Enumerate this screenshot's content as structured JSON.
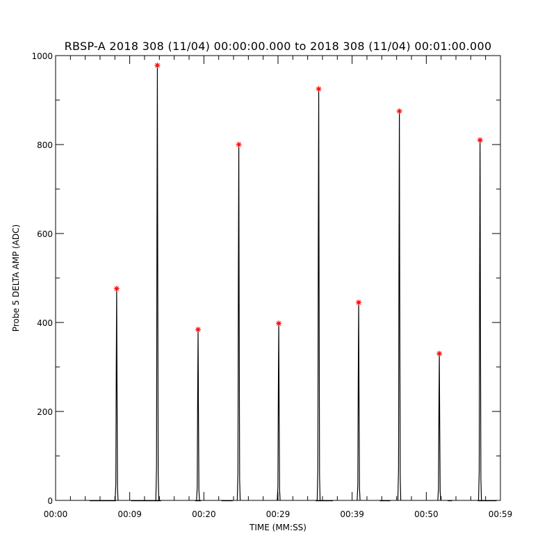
{
  "chart_data": {
    "type": "line",
    "title": "RBSP-A 2018 308 (11/04) 00:00:00.000 to 2018 308 (11/04) 00:01:00.000",
    "xlabel": "TIME (MM:SS)",
    "ylabel": "Probe 5 DELTA AMP (ADC)",
    "xlim": [
      0,
      59
    ],
    "ylim": [
      0,
      1000
    ],
    "x_ticks": [
      {
        "value": 0,
        "label": "00:00"
      },
      {
        "value": 9.83,
        "label": "00:09"
      },
      {
        "value": 19.67,
        "label": "00:20"
      },
      {
        "value": 29.5,
        "label": "00:29"
      },
      {
        "value": 39.33,
        "label": "00:39"
      },
      {
        "value": 49.17,
        "label": "00:50"
      },
      {
        "value": 59,
        "label": "00:59"
      }
    ],
    "y_ticks": [
      {
        "value": 0,
        "label": "0"
      },
      {
        "value": 200,
        "label": "200"
      },
      {
        "value": 400,
        "label": "400"
      },
      {
        "value": 600,
        "label": "600"
      },
      {
        "value": 800,
        "label": "800"
      },
      {
        "value": 1000,
        "label": "1000"
      }
    ],
    "grid": false,
    "series": [
      {
        "color": "#000000",
        "baseline_segments": [
          [
            4.5,
            8.0
          ],
          [
            10.0,
            14.0
          ],
          [
            18.5,
            19.3
          ],
          [
            22.0,
            23.5
          ],
          [
            34.5,
            36.8
          ],
          [
            43.0,
            44.4
          ],
          [
            52.0,
            52.6
          ],
          [
            56.0,
            58.5
          ]
        ],
        "spikes": [
          {
            "x": 8.1,
            "y": 476
          },
          {
            "x": 13.5,
            "y": 978
          },
          {
            "x": 18.9,
            "y": 384
          },
          {
            "x": 24.3,
            "y": 800
          },
          {
            "x": 29.6,
            "y": 398
          },
          {
            "x": 34.9,
            "y": 925
          },
          {
            "x": 40.2,
            "y": 445
          },
          {
            "x": 45.6,
            "y": 875
          },
          {
            "x": 50.9,
            "y": 330
          },
          {
            "x": 56.3,
            "y": 810
          }
        ]
      }
    ],
    "peak_markers": {
      "symbol": "*",
      "color": "#ff0000",
      "points": [
        {
          "x": 8.1,
          "y": 476
        },
        {
          "x": 13.5,
          "y": 978
        },
        {
          "x": 18.9,
          "y": 384
        },
        {
          "x": 24.3,
          "y": 800
        },
        {
          "x": 29.6,
          "y": 398
        },
        {
          "x": 34.9,
          "y": 925
        },
        {
          "x": 40.2,
          "y": 445
        },
        {
          "x": 45.6,
          "y": 875
        },
        {
          "x": 50.9,
          "y": 330
        },
        {
          "x": 56.3,
          "y": 810
        }
      ]
    }
  }
}
